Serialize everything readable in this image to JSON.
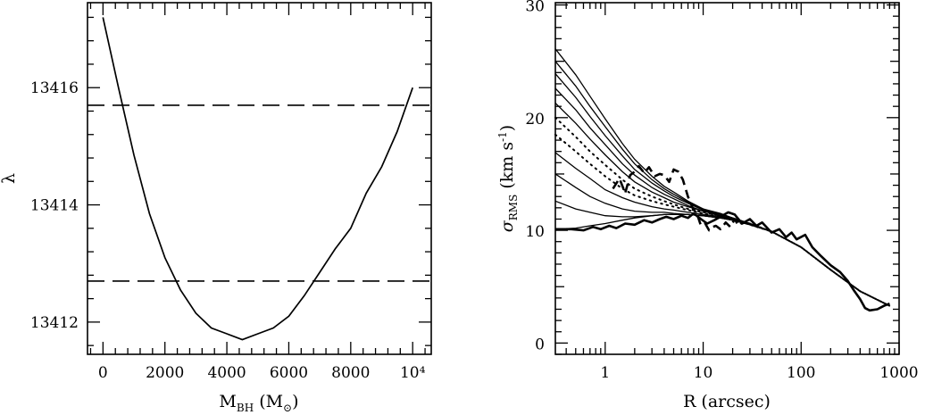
{
  "chart_data": [
    {
      "type": "line",
      "xlabel": {
        "main": "M",
        "sub": "BH",
        "unit_open": " (M",
        "unit_sub": "⊙",
        "unit_close": ")"
      },
      "ylabel": "λ",
      "xlim": [
        -500,
        10600
      ],
      "ylim": [
        13411.45,
        13417.45
      ],
      "x_ticks_major": [
        0,
        2000,
        4000,
        6000,
        8000,
        10000
      ],
      "x_tick_labels": [
        "0",
        "2000",
        "4000",
        "6000",
        "8000",
        "10⁴"
      ],
      "x_ticks_minor_step": 400,
      "y_ticks_major": [
        13412,
        13414,
        13416
      ],
      "y_tick_labels": [
        "13412",
        "13414",
        "13416"
      ],
      "y_ticks_minor_step": 0.4,
      "series": [
        {
          "style": "solid",
          "x": [
            0,
            500,
            1000,
            1500,
            2000,
            2500,
            3000,
            3500,
            4000,
            4500,
            5000,
            5500,
            6000,
            6500,
            7000,
            7500,
            8000,
            8500,
            9000,
            9500,
            10000
          ],
          "y": [
            13417.2,
            13416.0,
            13414.85,
            13413.85,
            13413.1,
            13412.55,
            13412.15,
            13411.9,
            13411.8,
            13411.7,
            13411.8,
            13411.9,
            13412.1,
            13412.45,
            13412.85,
            13413.25,
            13413.6,
            13414.2,
            13414.65,
            13415.25,
            13416.0
          ]
        }
      ],
      "reference_lines": [
        {
          "style": "dashed",
          "y": 13415.7
        },
        {
          "style": "dashed",
          "y": 13412.7
        }
      ]
    },
    {
      "type": "line",
      "xlabel": "R (arcsec)",
      "ylabel": {
        "main": "σ",
        "sub": "RMS",
        "unit": " (km s",
        "unit_sup": "-1",
        "unit_close": ")"
      },
      "x_scale": "log",
      "xlim": [
        0.31,
        1000
      ],
      "ylim": [
        -1,
        30.2
      ],
      "x_ticks_major": [
        1,
        10,
        100,
        1000
      ],
      "x_tick_labels": [
        "1",
        "10",
        "100",
        "1000"
      ],
      "y_ticks_major": [
        0,
        10,
        20,
        30
      ],
      "y_tick_labels": [
        "0",
        "10",
        "20",
        "30"
      ],
      "y_ticks_minor_step": 1,
      "model_x": [
        0.31,
        0.5,
        0.7,
        1,
        1.5,
        2,
        3,
        4,
        5,
        7,
        10,
        15,
        20,
        30,
        50,
        100,
        200,
        400,
        800
      ],
      "models": [
        {
          "style": "solid",
          "y": [
            10.1,
            10.2,
            10.4,
            10.6,
            10.9,
            11.1,
            11.3,
            11.4,
            11.4,
            11.4,
            11.3,
            11.1,
            10.9,
            10.5,
            9.9,
            8.5,
            6.5,
            4.6,
            3.3
          ]
        },
        {
          "style": "solid",
          "y": [
            12.6,
            11.9,
            11.6,
            11.3,
            11.2,
            11.2,
            11.3,
            11.4,
            11.4,
            11.4,
            11.3,
            11.1,
            10.9,
            10.5,
            9.9,
            8.5,
            6.5,
            4.6,
            3.3
          ]
        },
        {
          "style": "solid",
          "y": [
            15.0,
            13.8,
            13.0,
            12.4,
            11.9,
            11.7,
            11.6,
            11.6,
            11.5,
            11.4,
            11.3,
            11.1,
            10.9,
            10.5,
            9.9,
            8.5,
            6.5,
            4.6,
            3.3
          ]
        },
        {
          "style": "solid",
          "y": [
            16.9,
            15.5,
            14.6,
            13.6,
            12.9,
            12.5,
            12.1,
            11.9,
            11.8,
            11.6,
            11.4,
            11.2,
            10.9,
            10.5,
            9.9,
            8.5,
            6.5,
            4.6,
            3.3
          ]
        },
        {
          "style": "dotted",
          "y": [
            18.5,
            17.0,
            15.9,
            14.8,
            13.7,
            13.1,
            12.6,
            12.3,
            12.1,
            11.8,
            11.5,
            11.2,
            11.0,
            10.5,
            9.9,
            8.5,
            6.5,
            4.6,
            3.3
          ]
        },
        {
          "style": "dotted",
          "y": [
            20.0,
            18.3,
            17.0,
            15.8,
            14.5,
            13.7,
            13.0,
            12.6,
            12.3,
            11.9,
            11.6,
            11.3,
            11.0,
            10.6,
            9.9,
            8.5,
            6.5,
            4.6,
            3.3
          ]
        },
        {
          "style": "solid",
          "y": [
            21.3,
            19.5,
            18.1,
            16.7,
            15.2,
            14.3,
            13.4,
            12.9,
            12.5,
            12.1,
            11.7,
            11.3,
            11.0,
            10.6,
            9.9,
            8.5,
            6.5,
            4.6,
            3.3
          ]
        },
        {
          "style": "solid",
          "y": [
            22.6,
            20.7,
            19.1,
            17.6,
            15.9,
            14.9,
            13.8,
            13.2,
            12.8,
            12.2,
            11.7,
            11.4,
            11.1,
            10.6,
            9.9,
            8.5,
            6.5,
            4.6,
            3.3
          ]
        },
        {
          "style": "solid",
          "y": [
            23.9,
            21.8,
            20.1,
            18.4,
            16.6,
            15.4,
            14.2,
            13.5,
            13.0,
            12.4,
            11.8,
            11.4,
            11.1,
            10.6,
            9.9,
            8.5,
            6.5,
            4.6,
            3.3
          ]
        },
        {
          "style": "solid",
          "y": [
            25.0,
            22.8,
            21.0,
            19.2,
            17.2,
            15.9,
            14.5,
            13.7,
            13.2,
            12.5,
            11.9,
            11.4,
            11.1,
            10.6,
            9.9,
            8.5,
            6.5,
            4.6,
            3.3
          ]
        },
        {
          "style": "solid",
          "y": [
            26.1,
            23.8,
            21.9,
            19.9,
            17.7,
            16.3,
            14.8,
            13.9,
            13.4,
            12.6,
            11.9,
            11.5,
            11.1,
            10.6,
            9.9,
            8.5,
            6.5,
            4.6,
            3.3
          ]
        }
      ],
      "data_series": [
        {
          "style": "solid-thick",
          "x": [
            0.31,
            0.45,
            0.6,
            0.75,
            0.9,
            1.1,
            1.3,
            1.6,
            2.0,
            2.5,
            3.0,
            3.6,
            4.2,
            5.0,
            6.0,
            7.0,
            8.0,
            9.5,
            11,
            13,
            15,
            18,
            21,
            25,
            30,
            35,
            40,
            50,
            60,
            70,
            80,
            90,
            110,
            130,
            160,
            200,
            250,
            300,
            350,
            400,
            450,
            500,
            600,
            700,
            800
          ],
          "y": [
            10.1,
            10.1,
            10.0,
            10.3,
            10.1,
            10.4,
            10.2,
            10.6,
            10.5,
            10.9,
            10.7,
            11.0,
            11.2,
            11.0,
            11.3,
            11.1,
            11.5,
            11.0,
            10.6,
            10.9,
            11.2,
            11.6,
            11.4,
            10.6,
            11.0,
            10.4,
            10.7,
            9.8,
            10.1,
            9.4,
            9.8,
            9.2,
            9.6,
            8.5,
            7.7,
            6.9,
            6.3,
            5.5,
            4.6,
            3.9,
            3.1,
            2.9,
            3.0,
            3.3,
            3.5
          ]
        },
        {
          "style": "dashed-thick",
          "x": [
            1.2,
            1.4,
            1.6,
            1.8,
            2.0,
            2.2,
            2.5,
            2.8,
            3.2,
            3.6,
            4.0,
            4.5,
            5.0,
            5.6,
            6.2,
            7.0,
            7.8,
            8.7,
            9.5,
            10.5,
            11.5,
            12.5,
            13.5,
            15.0,
            17.0,
            19.0,
            21.0,
            23.0,
            25.0
          ],
          "y": [
            13.7,
            14.6,
            13.3,
            14.9,
            15.2,
            15.7,
            15.1,
            15.6,
            14.8,
            15.0,
            14.9,
            14.3,
            15.4,
            15.2,
            14.5,
            13.0,
            12.0,
            11.4,
            10.4,
            10.6,
            10.0,
            10.3,
            10.4,
            10.1,
            10.7,
            10.3,
            11.0,
            10.4,
            10.7
          ]
        }
      ]
    }
  ]
}
